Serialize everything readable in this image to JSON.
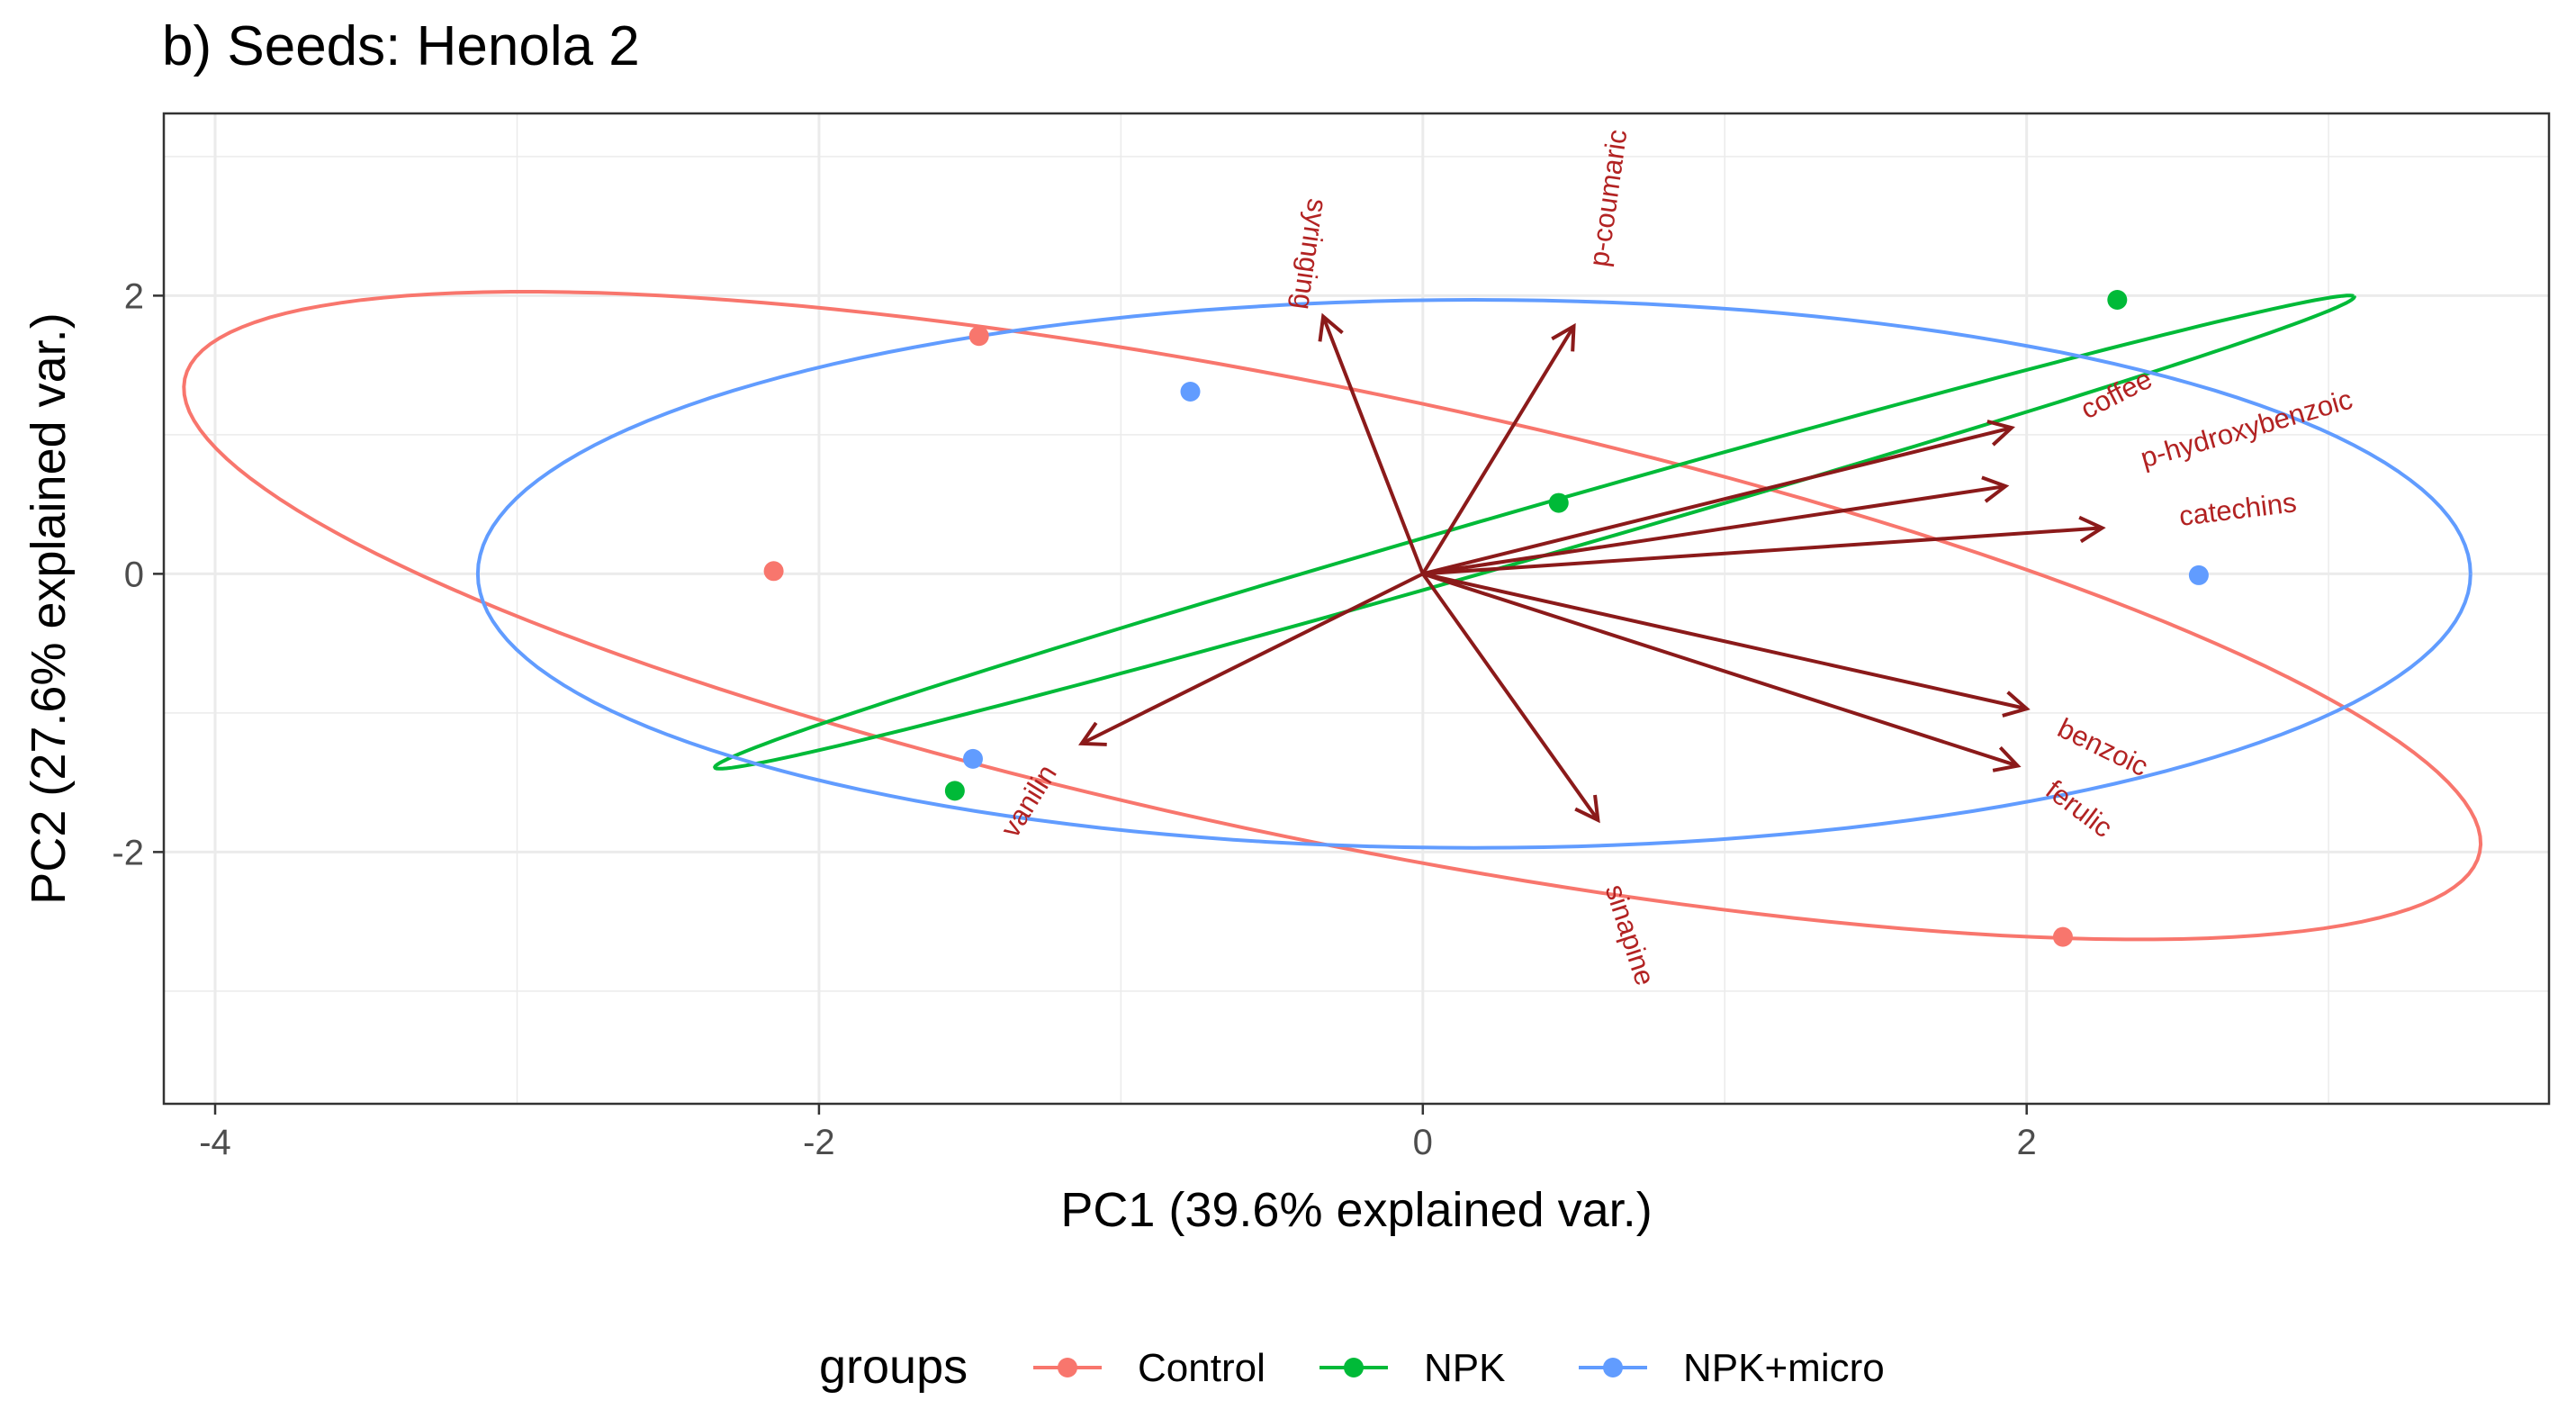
{
  "chart_data": {
    "type": "scatter",
    "title": "b) Seeds: Henola 2",
    "xlabel": "PC1 (39.6% explained var.)",
    "ylabel": "PC2 (27.6% explained var.)",
    "xlim": [
      -4.17,
      3.73
    ],
    "ylim": [
      -3.81,
      3.31
    ],
    "xticks": [
      -4,
      -2,
      0,
      2
    ],
    "xtick_labels": [
      "-4",
      "-2",
      "0",
      "2"
    ],
    "yticks": [
      -2,
      0,
      2
    ],
    "ytick_labels": [
      "-2",
      "0",
      "2"
    ],
    "grid": true,
    "legend_position": "bottom",
    "legend_title": "groups",
    "groups": [
      {
        "name": "Control",
        "color": "#F8766D"
      },
      {
        "name": "NPK",
        "color": "#00BA38"
      },
      {
        "name": "NPK+micro",
        "color": "#619CFF"
      }
    ],
    "points": [
      {
        "group": "Control",
        "x": -1.47,
        "y": 1.71
      },
      {
        "group": "Control",
        "x": -2.15,
        "y": 0.02
      },
      {
        "group": "Control",
        "x": 2.12,
        "y": -2.61
      },
      {
        "group": "NPK",
        "x": 2.3,
        "y": 1.97
      },
      {
        "group": "NPK",
        "x": 0.45,
        "y": 0.51
      },
      {
        "group": "NPK",
        "x": -1.55,
        "y": -1.56
      },
      {
        "group": "NPK+micro",
        "x": -0.77,
        "y": 1.31
      },
      {
        "group": "NPK+micro",
        "x": 2.57,
        "y": -0.01
      },
      {
        "group": "NPK+micro",
        "x": -1.49,
        "y": -1.33
      }
    ],
    "ellipses": [
      {
        "group": "Control",
        "cx": -0.3,
        "cy": -0.3,
        "rx": 4.2,
        "ry": 1.5,
        "angle_deg": -27
      },
      {
        "group": "NPK",
        "cx": 0.37,
        "cy": 0.3,
        "rx": 3.2,
        "ry": 0.16,
        "angle_deg": 32
      },
      {
        "group": "NPK+micro",
        "cx": 0.17,
        "cy": 0.0,
        "rx": 3.3,
        "ry": 1.97,
        "angle_deg": 0
      }
    ],
    "loadings": {
      "color": "#8B1A1A",
      "label_color": "#B22222",
      "arrows": [
        {
          "label": "syringing",
          "x": -0.33,
          "y": 1.85,
          "lx": -0.38,
          "ly": 2.3,
          "rotate": 98
        },
        {
          "label": "p-coumaric",
          "x": 0.5,
          "y": 1.78,
          "lx": 0.62,
          "ly": 2.7,
          "rotate": -82
        },
        {
          "label": "coffee",
          "x": 1.95,
          "y": 1.05,
          "lx": 2.3,
          "ly": 1.28,
          "rotate": -27
        },
        {
          "label": "p-hydroxybenzoic",
          "x": 1.93,
          "y": 0.63,
          "lx": 2.73,
          "ly": 1.03,
          "rotate": -16
        },
        {
          "label": "catechins",
          "x": 2.25,
          "y": 0.33,
          "lx": 2.7,
          "ly": 0.45,
          "rotate": -7
        },
        {
          "label": "benzoic",
          "x": 2.0,
          "y": -0.97,
          "lx": 2.25,
          "ly": -1.26,
          "rotate": 26
        },
        {
          "label": "ferulic",
          "x": 1.97,
          "y": -1.38,
          "lx": 2.17,
          "ly": -1.7,
          "rotate": 37
        },
        {
          "label": "sinapine",
          "x": 0.58,
          "y": -1.77,
          "lx": 0.68,
          "ly": -2.6,
          "rotate": 72
        },
        {
          "label": "vanilin",
          "x": -1.13,
          "y": -1.22,
          "lx": -1.3,
          "ly": -1.64,
          "rotate": -58
        }
      ]
    }
  }
}
